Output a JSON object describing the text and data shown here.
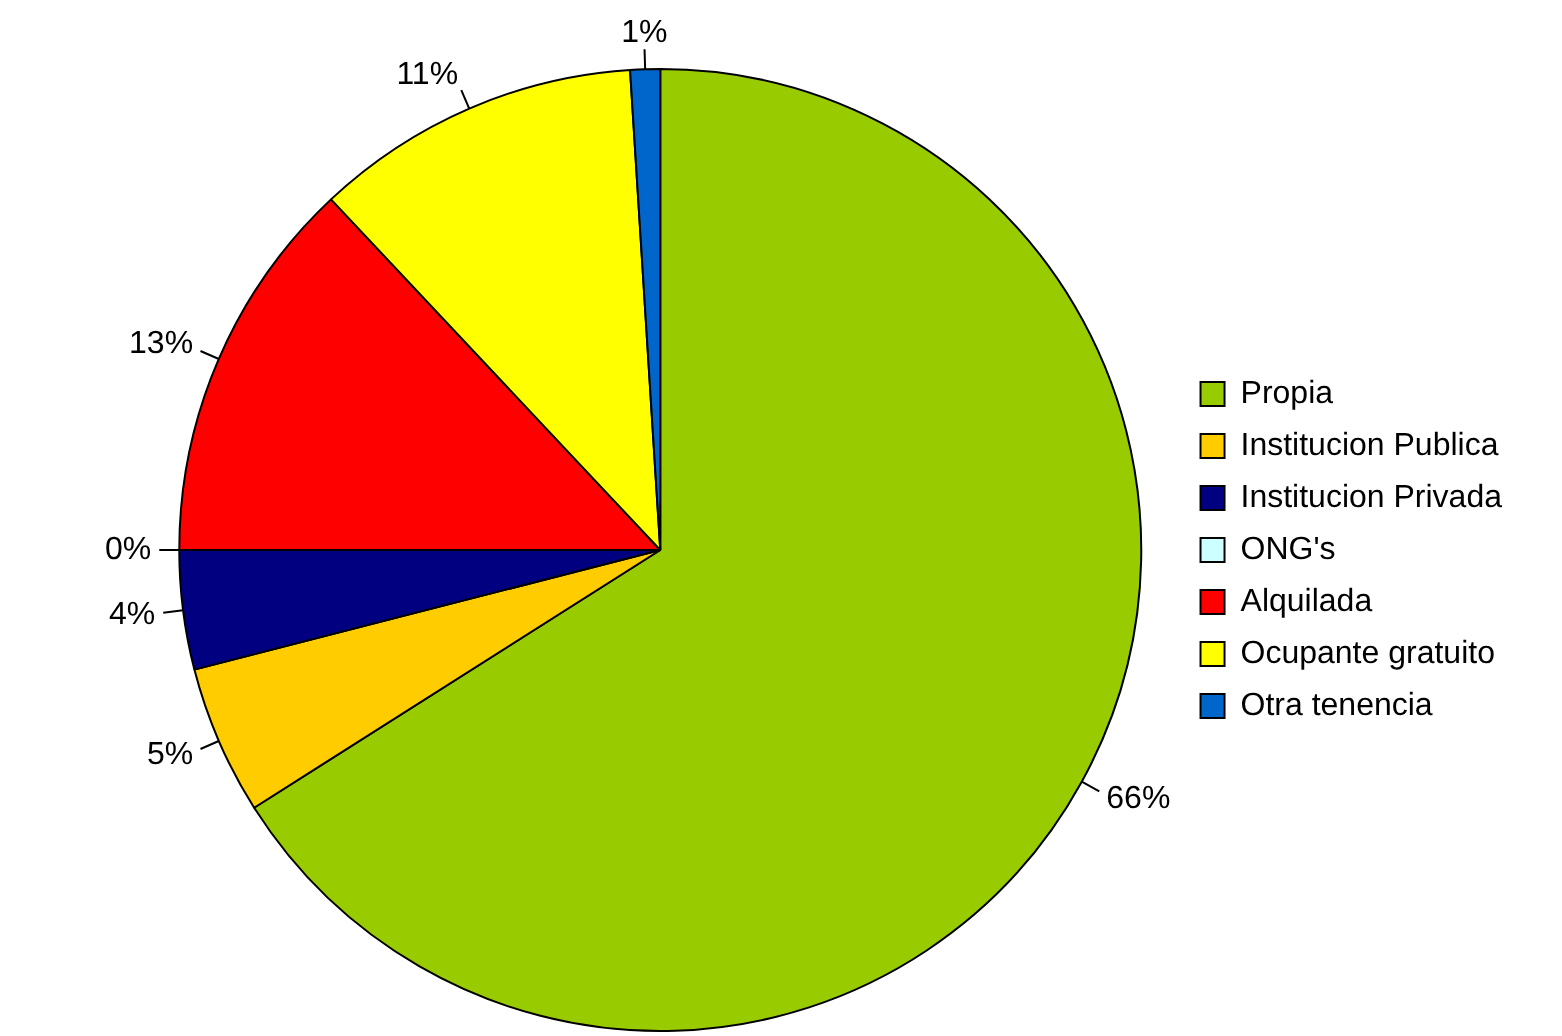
{
  "chart_data": {
    "type": "pie",
    "categories": [
      "Propia",
      "Institucion Publica",
      "Institucion Privada",
      "ONG's",
      "Alquilada",
      "Ocupante gratuito",
      "Otra tenencia"
    ],
    "values": [
      66,
      5,
      4,
      0,
      13,
      11,
      1
    ],
    "colors": [
      "#99cc00",
      "#ffcc00",
      "#000080",
      "#ccffff",
      "#ff0000",
      "#ffff00",
      "#0066cc"
    ],
    "value_labels": [
      "66%",
      "5%",
      "4%",
      "0%",
      "13%",
      "11%",
      "1%"
    ],
    "legend": "right"
  }
}
